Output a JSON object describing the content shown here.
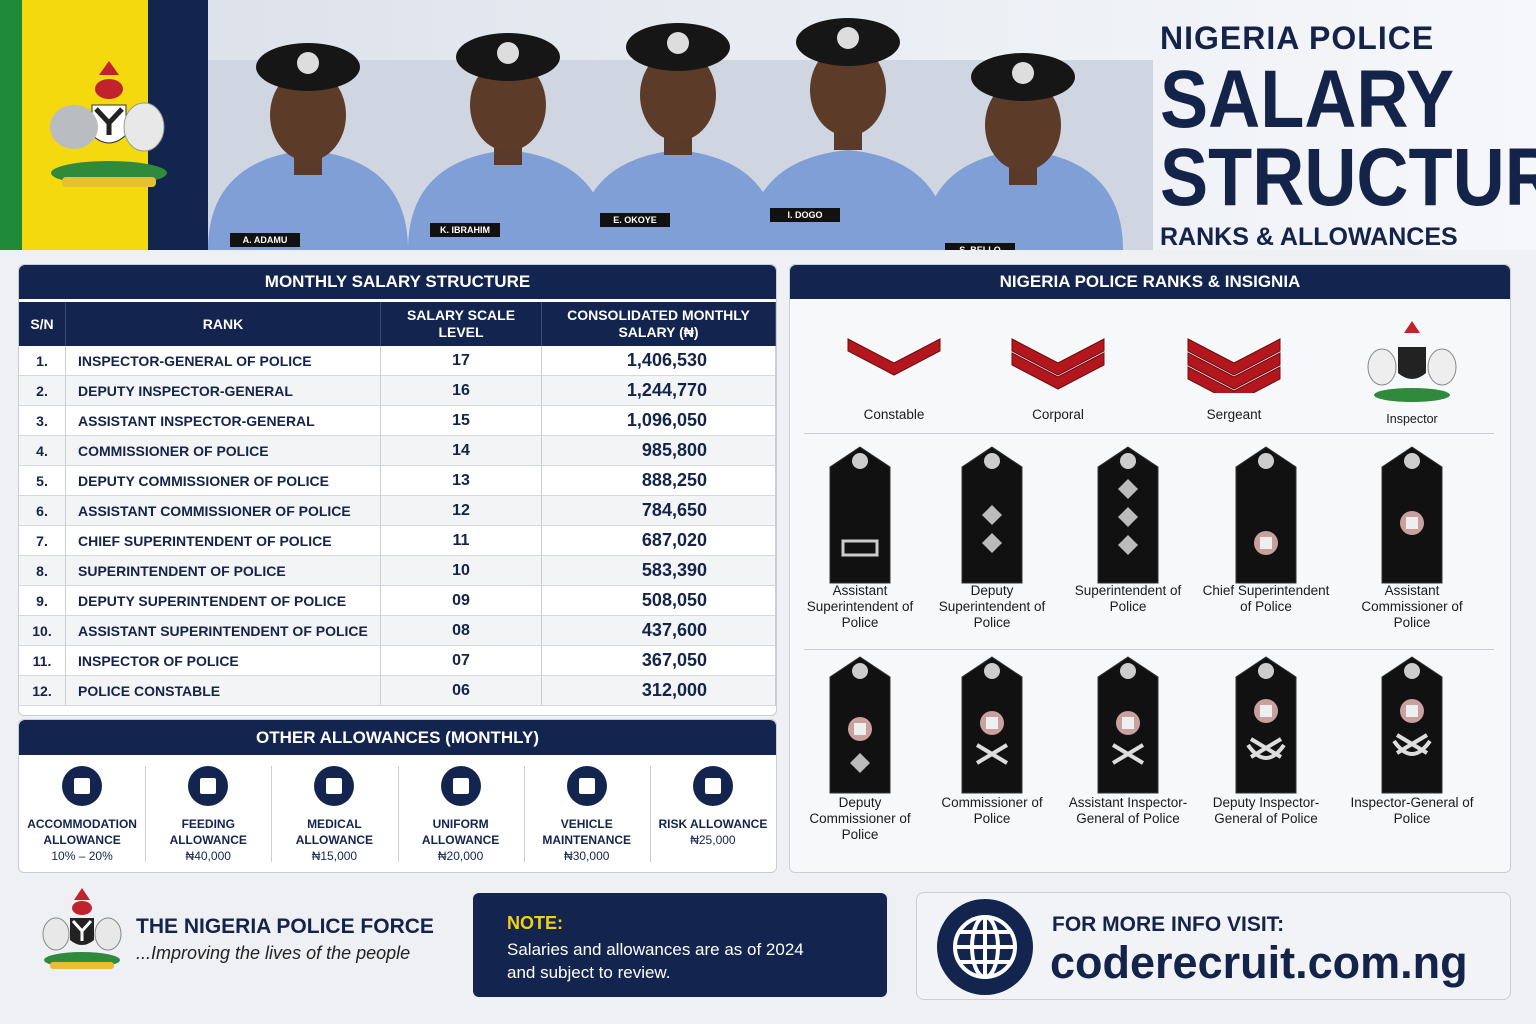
{
  "header": {
    "kicker": "NIGERIA POLICE",
    "title_line1": "SALARY",
    "title_line2": "STRUCTURE",
    "subtitle": "RANKS & ALLOWANCES",
    "name_tags": [
      "A. ADAMU",
      "K. IBRAHIM",
      "E. OKOYE",
      "I. DOGO",
      "S. BELLO"
    ]
  },
  "salary_table": {
    "title": "MONTHLY SALARY STRUCTURE",
    "columns": [
      "S/N",
      "RANK",
      "SALARY SCALE LEVEL",
      "CONSOLIDATED MONTHLY SALARY (₦)"
    ],
    "rows": [
      [
        "1.",
        "INSPECTOR-GENERAL OF POLICE",
        "17",
        "1,406,530"
      ],
      [
        "2.",
        "DEPUTY INSPECTOR-GENERAL",
        "16",
        "1,244,770"
      ],
      [
        "3.",
        "ASSISTANT INSPECTOR-GENERAL",
        "15",
        "1,096,050"
      ],
      [
        "4.",
        "COMMISSIONER OF POLICE",
        "14",
        "985,800"
      ],
      [
        "5.",
        "DEPUTY COMMISSIONER OF POLICE",
        "13",
        "888,250"
      ],
      [
        "6.",
        "ASSISTANT COMMISSIONER OF POLICE",
        "12",
        "784,650"
      ],
      [
        "7.",
        "CHIEF SUPERINTENDENT OF POLICE",
        "11",
        "687,020"
      ],
      [
        "8.",
        "SUPERINTENDENT OF POLICE",
        "10",
        "583,390"
      ],
      [
        "9.",
        "DEPUTY SUPERINTENDENT OF POLICE",
        "09",
        "508,050"
      ],
      [
        "10.",
        "ASSISTANT SUPERINTENDENT OF POLICE",
        "08",
        "437,600"
      ],
      [
        "11.",
        "INSPECTOR OF POLICE",
        "07",
        "367,050"
      ],
      [
        "12.",
        "POLICE CONSTABLE",
        "06",
        "312,000"
      ]
    ]
  },
  "allowances": {
    "title": "OTHER ALLOWANCES (MONTHLY)",
    "items": [
      {
        "name": "ACCOMMODATION ALLOWANCE",
        "amount": "10% – 20%"
      },
      {
        "name": "FEEDING ALLOWANCE",
        "amount": "₦40,000"
      },
      {
        "name": "MEDICAL ALLOWANCE",
        "amount": "₦15,000"
      },
      {
        "name": "UNIFORM ALLOWANCE",
        "amount": "₦20,000"
      },
      {
        "name": "VEHICLE MAINTENANCE",
        "amount": "₦30,000"
      },
      {
        "name": "RISK ALLOWANCE",
        "amount": "₦25,000"
      }
    ]
  },
  "ranks": {
    "title": "NIGERIA POLICE RANKS & INSIGNIA",
    "chevrons": [
      "Constable",
      "Corporal",
      "Sergeant",
      "Inspector"
    ],
    "row1": [
      "Assistant Superintendent of Police",
      "Deputy Superintendent of Police",
      "Superintendent of Police",
      "Chief Superintendent of Police",
      "Assistant Commissioner of Police"
    ],
    "row2": [
      "Deputy Commissioner of Police",
      "Commissioner of Police",
      "Assistant Inspector-General of Police",
      "Deputy Inspector-General of Police",
      "Inspector-General of Police"
    ]
  },
  "footer": {
    "org_name": "THE NIGERIA POLICE FORCE",
    "motto": "...Improving the lives of the people",
    "note_label": "NOTE:",
    "note_text": "Salaries and allowances are as of 2024 and subject to review.",
    "info_label": "FOR MORE INFO VISIT:",
    "url": "coderecruit.com.ng"
  }
}
